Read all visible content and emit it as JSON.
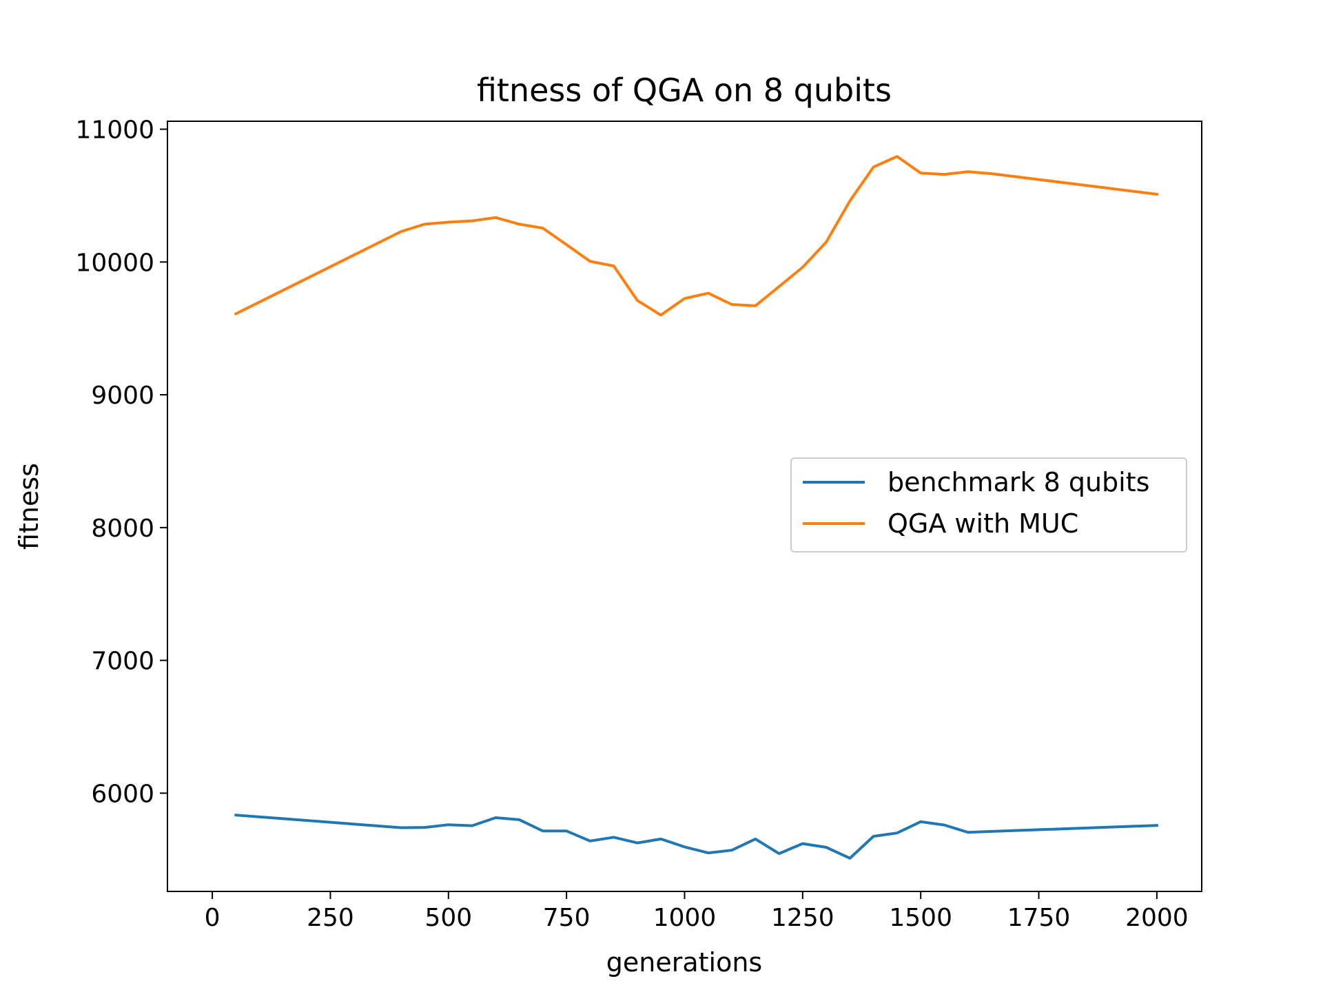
{
  "chart_data": {
    "type": "line",
    "title": "fitness of QGA on 8 qubits",
    "xlabel": "generations",
    "ylabel": "fitness",
    "xlim": [
      -95,
      2095
    ],
    "ylim": [
      5260,
      11060
    ],
    "xticks": [
      0,
      250,
      500,
      750,
      1000,
      1250,
      1500,
      1750,
      2000
    ],
    "xtick_labels": [
      "0",
      "250",
      "500",
      "750",
      "1000",
      "1250",
      "1500",
      "1750",
      "2000"
    ],
    "yticks": [
      6000,
      7000,
      8000,
      9000,
      10000,
      11000
    ],
    "ytick_labels": [
      "6000",
      "7000",
      "8000",
      "9000",
      "10000",
      "11000"
    ],
    "grid": false,
    "legend_position": "center-right",
    "series": [
      {
        "name": "benchmark 8 qubits",
        "color": "#1f77b4",
        "x": [
          50,
          400,
          450,
          500,
          550,
          600,
          650,
          700,
          750,
          800,
          850,
          900,
          950,
          1000,
          1050,
          1100,
          1150,
          1200,
          1250,
          1300,
          1350,
          1400,
          1450,
          1500,
          1550,
          1600,
          1650,
          2000
        ],
        "y": [
          5835,
          5740,
          5742,
          5762,
          5755,
          5815,
          5800,
          5715,
          5715,
          5640,
          5668,
          5625,
          5655,
          5595,
          5550,
          5570,
          5655,
          5545,
          5620,
          5592,
          5510,
          5675,
          5700,
          5785,
          5760,
          5705,
          5712,
          5757
        ]
      },
      {
        "name": "QGA with MUC",
        "color": "#ff7f0e",
        "x": [
          50,
          400,
          450,
          500,
          550,
          600,
          650,
          700,
          750,
          800,
          850,
          900,
          950,
          1000,
          1050,
          1100,
          1150,
          1200,
          1250,
          1300,
          1350,
          1400,
          1450,
          1500,
          1550,
          1600,
          1650,
          2000
        ],
        "y": [
          9610,
          10230,
          10285,
          10300,
          10310,
          10335,
          10285,
          10255,
          10130,
          10005,
          9970,
          9710,
          9600,
          9725,
          9765,
          9680,
          9670,
          9815,
          9960,
          10150,
          10460,
          10715,
          10795,
          10670,
          10660,
          10680,
          10665,
          10510
        ]
      }
    ]
  }
}
